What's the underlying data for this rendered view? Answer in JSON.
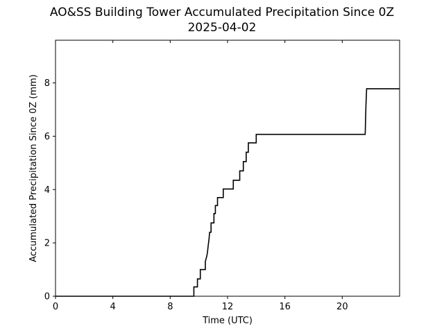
{
  "chart_data": {
    "type": "line",
    "title": "AO&SS Building Tower Accumulated Precipitation Since 0Z",
    "subtitle": "2025-04-02",
    "xlabel": "Time (UTC)",
    "ylabel": "Accumulated Precipitation Since 0Z (mm)",
    "xlim": [
      0,
      24
    ],
    "ylim": [
      0,
      9.6
    ],
    "x_ticks": [
      0,
      4,
      8,
      12,
      16,
      20
    ],
    "y_ticks": [
      0,
      2,
      4,
      6,
      8
    ],
    "grid": false,
    "line_color": "#000000",
    "series": [
      {
        "x": [
          0,
          9.65,
          9.65,
          9.9,
          9.9,
          10.1,
          10.1,
          10.45,
          10.45,
          10.5,
          10.55,
          10.6,
          10.65,
          10.7,
          10.75,
          10.85,
          10.85,
          11.05,
          11.05,
          11.15,
          11.15,
          11.3,
          11.3,
          11.7,
          11.7,
          12.4,
          12.4,
          12.85,
          12.85,
          13.1,
          13.1,
          13.3,
          13.3,
          13.45,
          13.45,
          14.0,
          14.0,
          21.6,
          21.65,
          21.7,
          24
        ],
        "y": [
          0,
          0,
          0.35,
          0.35,
          0.65,
          0.65,
          1.0,
          1.0,
          1.3,
          1.4,
          1.5,
          1.65,
          1.9,
          2.1,
          2.4,
          2.4,
          2.75,
          2.75,
          3.1,
          3.1,
          3.4,
          3.4,
          3.7,
          3.7,
          4.02,
          4.02,
          4.35,
          4.35,
          4.7,
          4.7,
          5.05,
          5.05,
          5.4,
          5.4,
          5.75,
          5.75,
          6.07,
          6.07,
          7.1,
          7.78,
          7.78
        ]
      }
    ]
  }
}
